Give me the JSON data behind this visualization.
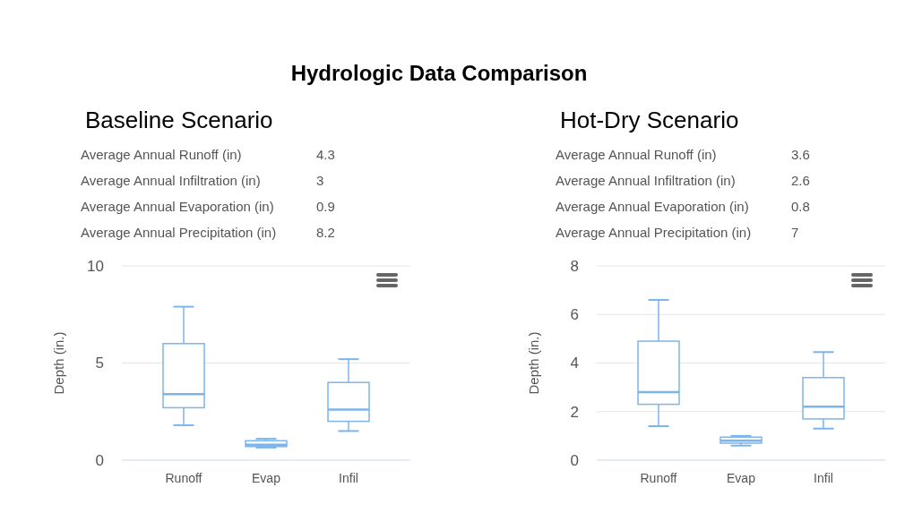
{
  "chart_data": [
    {
      "type": "other",
      "title": "Hydrologic Data Comparison"
    },
    {
      "type": "box",
      "title": "Baseline Scenario",
      "ylabel": "Depth (in.)",
      "categories": [
        "Runoff",
        "Evap",
        "Infil"
      ],
      "annotations": [
        "Average Annual Runoff (in)",
        "4.3",
        "Average Annual Infiltration (in)",
        "3",
        "Average Annual Evaporation (in)",
        "0.9",
        "Average Annual Precipitation (in)",
        "8.2"
      ],
      "series": [
        {
          "color": "#7cb5ec",
          "boxes": [
            {
              "low": 1.8,
              "q1": 2.7,
              "median": 3.4,
              "q3": 6.0,
              "high": 7.9
            },
            {
              "low": 0.65,
              "q1": 0.7,
              "median": 0.8,
              "q3": 1.0,
              "high": 1.1
            },
            {
              "low": 1.5,
              "q1": 2.0,
              "median": 2.6,
              "q3": 4.0,
              "high": 5.2
            }
          ]
        }
      ],
      "ylim": [
        0,
        10
      ],
      "yticks": [
        0,
        5,
        10
      ],
      "grid": "y"
    },
    {
      "type": "box",
      "title": "Hot-Dry Scenario",
      "ylabel": "Depth (in.)",
      "categories": [
        "Runoff",
        "Evap",
        "Infil"
      ],
      "annotations": [
        "Average Annual Runoff (in)",
        "3.6",
        "Average Annual Infiltration (in)",
        "2.6",
        "Average Annual Evaporation (in)",
        "0.8",
        "Average Annual Precipitation (in)",
        "7"
      ],
      "series": [
        {
          "color": "#7cb5ec",
          "boxes": [
            {
              "low": 1.4,
              "q1": 2.3,
              "median": 2.8,
              "q3": 4.9,
              "high": 6.6
            },
            {
              "low": 0.6,
              "q1": 0.7,
              "median": 0.8,
              "q3": 0.95,
              "high": 1.0
            },
            {
              "low": 1.3,
              "q1": 1.7,
              "median": 2.2,
              "q3": 3.4,
              "high": 4.45
            }
          ]
        }
      ],
      "ylim": [
        0,
        8
      ],
      "yticks": [
        0,
        2,
        4,
        6,
        8
      ],
      "grid": "y"
    }
  ]
}
